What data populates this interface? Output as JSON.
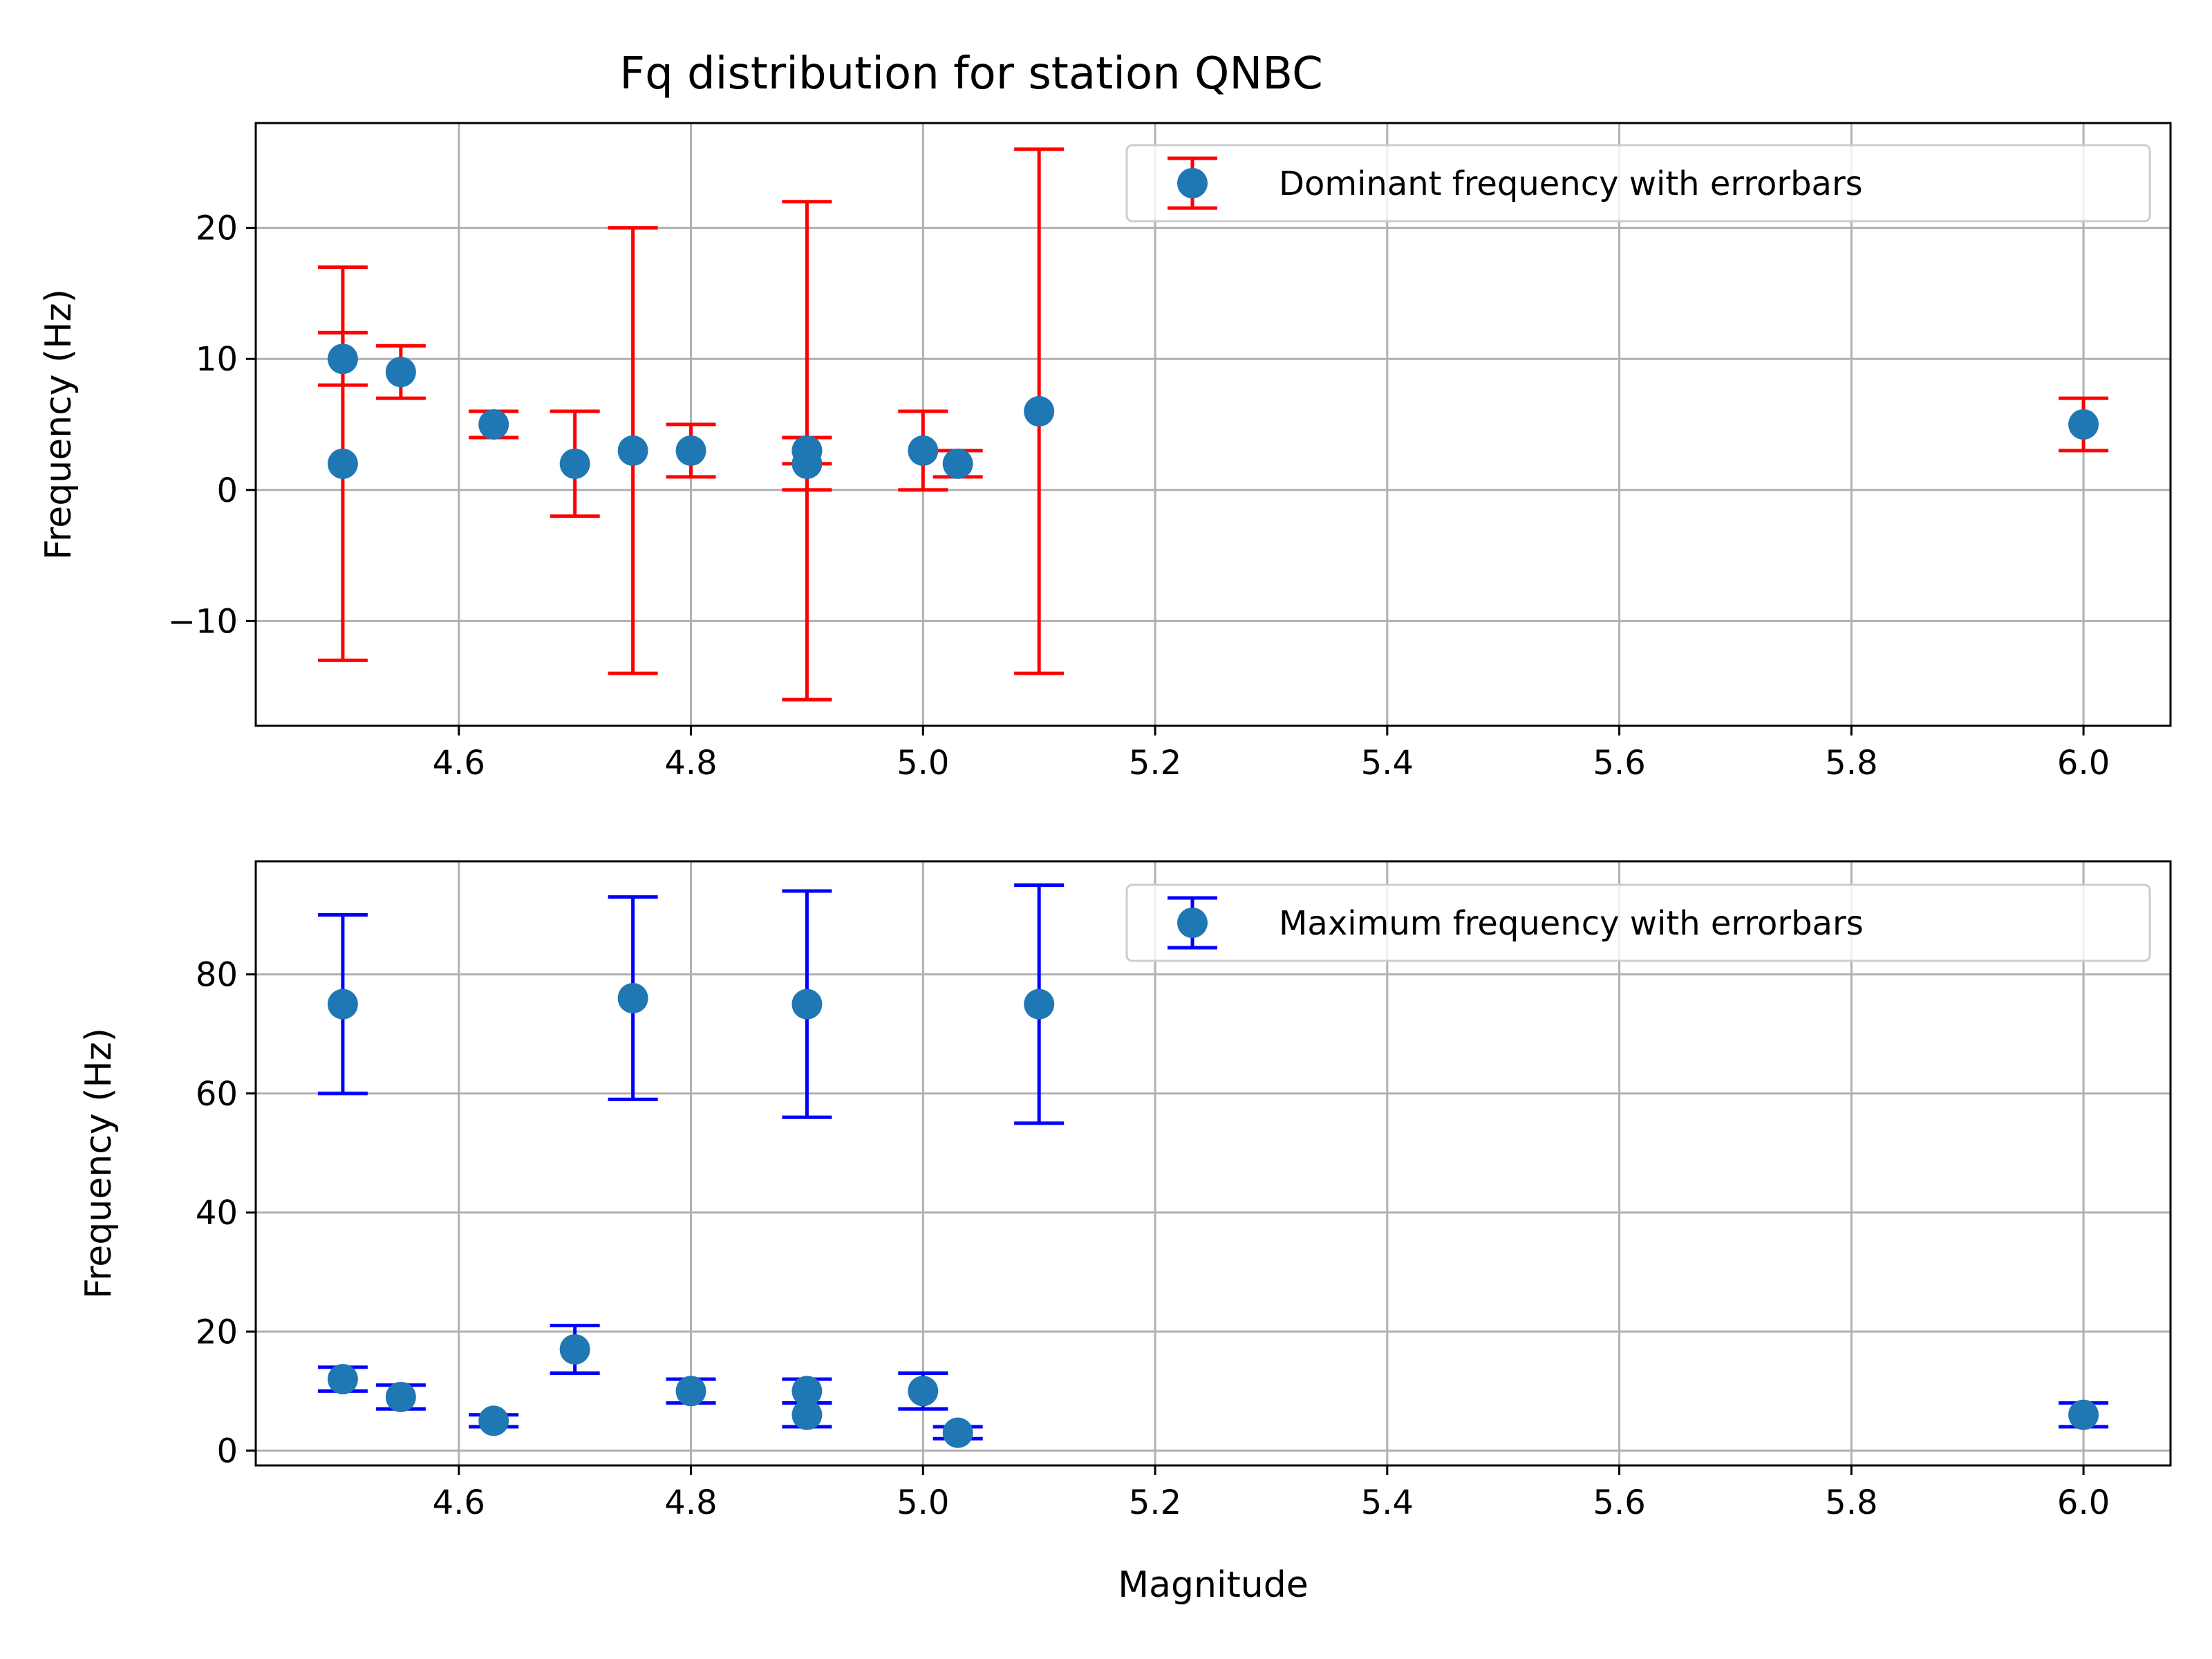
{
  "title": "Fq distribution for station QNBC",
  "colors": {
    "marker": "#1f77b4",
    "dominant_error": "#ff0000",
    "maximum_error": "#0000ff",
    "grid": "#b0b0b0",
    "axes": "#000000",
    "legend_border": "#cccccc"
  },
  "chart_data": [
    {
      "type": "scatter",
      "title": "Fq distribution for station QNBC",
      "xlabel": "",
      "ylabel": "Frequency (Hz)",
      "xlim": [
        4.425,
        6.075
      ],
      "ylim": [
        -18,
        28
      ],
      "xticks": [
        4.6,
        4.8,
        5.0,
        5.2,
        5.4,
        5.6,
        5.8,
        6.0
      ],
      "xtick_labels": [
        "4.6",
        "4.8",
        "5.0",
        "5.2",
        "5.4",
        "5.6",
        "5.8",
        "6.0"
      ],
      "yticks": [
        -10,
        0,
        10,
        20
      ],
      "ytick_labels": [
        "−10",
        "0",
        "10",
        "20"
      ],
      "grid": true,
      "legend_position": "top-right",
      "series": [
        {
          "name": "Dominant frequency with errorbars",
          "error_color": "red",
          "points": [
            {
              "x": 4.5,
              "y": 10,
              "err": 2
            },
            {
              "x": 4.5,
              "y": 2,
              "err": 15
            },
            {
              "x": 4.55,
              "y": 9,
              "err": 2
            },
            {
              "x": 4.63,
              "y": 5,
              "err": 1
            },
            {
              "x": 4.7,
              "y": 2,
              "err": 4
            },
            {
              "x": 4.75,
              "y": 3,
              "err": 17
            },
            {
              "x": 4.8,
              "y": 3,
              "err": 2
            },
            {
              "x": 4.9,
              "y": 3,
              "err": 1
            },
            {
              "x": 4.9,
              "y": 2,
              "err": 2
            },
            {
              "x": 4.9,
              "y": 3,
              "err": 19
            },
            {
              "x": 5.0,
              "y": 3,
              "err": 3
            },
            {
              "x": 5.03,
              "y": 2,
              "err": 1
            },
            {
              "x": 5.1,
              "y": 6,
              "err": 20
            },
            {
              "x": 6.0,
              "y": 5,
              "err": 2
            }
          ]
        }
      ]
    },
    {
      "type": "scatter",
      "title": "",
      "xlabel": "Magnitude",
      "ylabel": "Frequency (Hz)",
      "xlim": [
        4.425,
        6.075
      ],
      "ylim": [
        -2.5,
        99
      ],
      "xticks": [
        4.6,
        4.8,
        5.0,
        5.2,
        5.4,
        5.6,
        5.8,
        6.0
      ],
      "xtick_labels": [
        "4.6",
        "4.8",
        "5.0",
        "5.2",
        "5.4",
        "5.6",
        "5.8",
        "6.0"
      ],
      "yticks": [
        0,
        20,
        40,
        60,
        80
      ],
      "ytick_labels": [
        "0",
        "20",
        "40",
        "60",
        "80"
      ],
      "grid": true,
      "legend_position": "top-right",
      "series": [
        {
          "name": "Maximum frequency with errorbars",
          "error_color": "blue",
          "points": [
            {
              "x": 4.5,
              "y": 75,
              "err": 15
            },
            {
              "x": 4.5,
              "y": 12,
              "err": 2
            },
            {
              "x": 4.55,
              "y": 9,
              "err": 2
            },
            {
              "x": 4.63,
              "y": 5,
              "err": 1
            },
            {
              "x": 4.7,
              "y": 17,
              "err": 4
            },
            {
              "x": 4.75,
              "y": 76,
              "err": 17
            },
            {
              "x": 4.8,
              "y": 10,
              "err": 2
            },
            {
              "x": 4.9,
              "y": 75,
              "err": 19
            },
            {
              "x": 4.9,
              "y": 10,
              "err": 2
            },
            {
              "x": 4.9,
              "y": 6,
              "err": 2
            },
            {
              "x": 5.0,
              "y": 10,
              "err": 3
            },
            {
              "x": 5.03,
              "y": 3,
              "err": 1
            },
            {
              "x": 5.1,
              "y": 75,
              "err": 20
            },
            {
              "x": 6.0,
              "y": 6,
              "err": 2
            }
          ]
        }
      ]
    }
  ]
}
